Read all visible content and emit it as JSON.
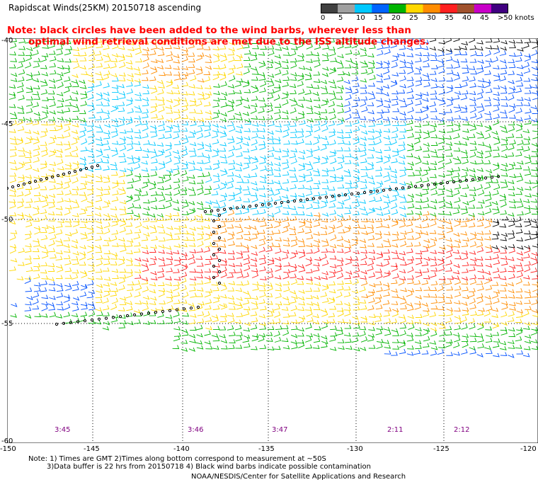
{
  "title": "Rapidscat Winds(25KM) 20150718 ascending",
  "note_line1": "Note: black circles have been added to the wind barbs, wherever less than",
  "note_line2": "optimal wind retrieval conditions are met due to the ISS altitude changes.",
  "colorbar": {
    "labels": [
      "0",
      "5",
      "10",
      "15",
      "20",
      "25",
      "30",
      "35",
      "40",
      "45",
      ">50 knots"
    ],
    "colors": [
      "#404040",
      "#a0a0a0",
      "#00c8ff",
      "#0064ff",
      "#00b400",
      "#ffd700",
      "#ff8c00",
      "#ff2020",
      "#a0522d",
      "#c800c8",
      "#400080"
    ]
  },
  "axes": {
    "lat_labels": [
      "-40",
      "-45",
      "-50",
      "-55",
      "-60"
    ],
    "lon_labels": [
      "-150",
      "-145",
      "-140",
      "-135",
      "-130",
      "-125",
      "-120"
    ]
  },
  "pass_times": [
    "3:45",
    "3:46",
    "3:47",
    "2:11",
    "2:12"
  ],
  "footnotes": {
    "line1": "Note: 1) Times are GMT 2)Times along bottom correspond to measurement at ~50S",
    "line2": "3)Data buffer is 22 hrs from 20150718 4) Black wind barbs indicate possible contamination",
    "line3": "NOAA/NESDIS/Center for Satellite Applications and Research"
  }
}
